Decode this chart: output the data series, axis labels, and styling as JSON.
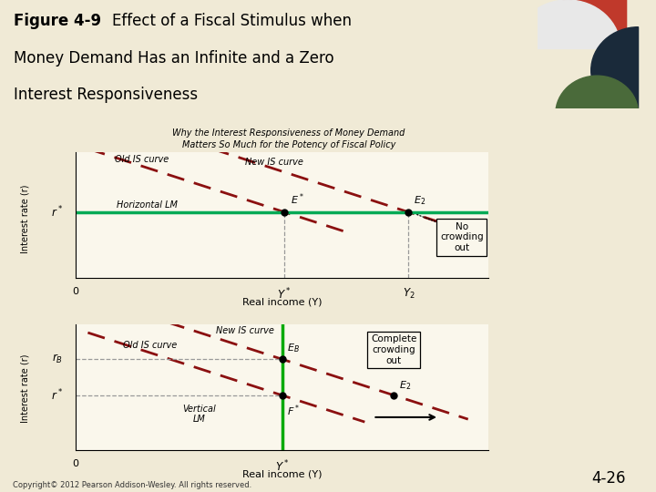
{
  "title_bold": "Figure 4-9",
  "title_rest": "  Effect of a Fiscal Stimulus when",
  "title_line2": "Money Demand Has an Infinite and a Zero",
  "title_line3": "Interest Responsiveness",
  "subtitle": "Why the Interest Responsiveness of Money Demand\nMatters So Much for the Potency of Fiscal Policy",
  "bg_color": "#f0ead6",
  "panel_bg": "#faf7ec",
  "green_strip": "#b8c89a",
  "top_panel": {
    "lm_label": "Horizontal LM",
    "old_is_label": "Old IS curve",
    "new_is_label": "New IS curve",
    "annotation": "No\ncrowding\nout",
    "r_label": "r*",
    "y_star_label": "Y*",
    "y2_label": "Y₂",
    "e_star_label": "E*",
    "e2_label": "E₂",
    "ylabel": "Interest rate (r)"
  },
  "bottom_panel": {
    "lm_label": "Vertical\nLM",
    "old_is_label": "Old IS curve",
    "new_is_label": "New IS curve",
    "annotation": "Complete\ncrowding\nout",
    "r_b_label": "r₈",
    "r_star_label": "r*",
    "y_star_label": "Y*",
    "e_b_label": "E₈",
    "e_star_label": "F*",
    "e2_label": "E₂",
    "ylabel": "Interest rate (r)"
  },
  "copyright": "Copyright© 2012 Pearson Addison-Wesley. All rights reserved.",
  "page_num": "4-26",
  "is_color": "#8B1010",
  "lm_color_top": "#00aa55",
  "lm_color_bottom": "#00aa00",
  "dot_color": "black",
  "dashed_color": "#888888"
}
